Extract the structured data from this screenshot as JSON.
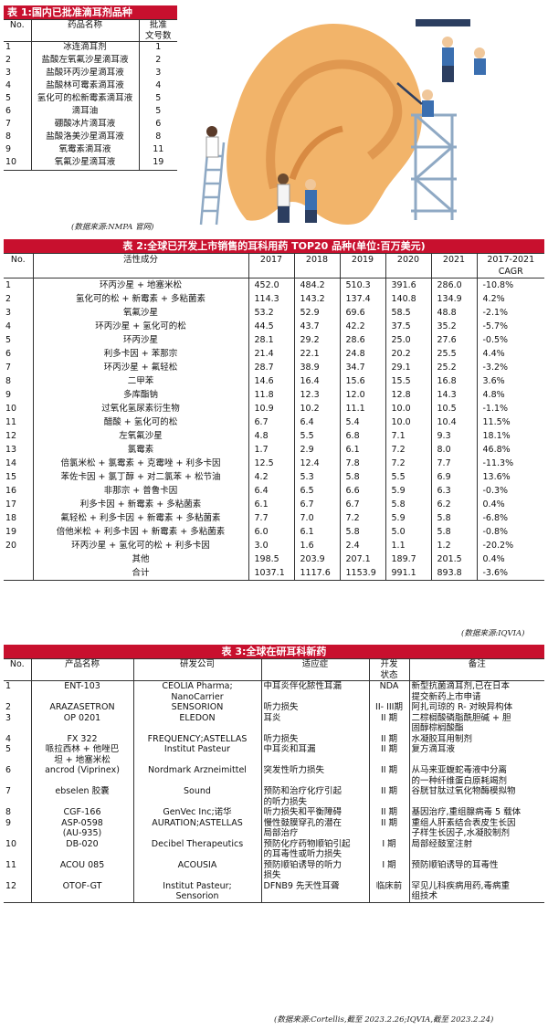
{
  "table1": {
    "title": "表 1:国内已批准滴耳剂品种",
    "headers": [
      "No.",
      "药品名称",
      "批准\n文号数"
    ],
    "rows": [
      [
        "1",
        "冰连滴耳剂",
        "1"
      ],
      [
        "2",
        "盐酸左氧氟沙星滴耳液",
        "2"
      ],
      [
        "3",
        "盐酸环丙沙星滴耳液",
        "3"
      ],
      [
        "4",
        "盐酸林可霉素滴耳液",
        "4"
      ],
      [
        "5",
        "氢化可的松新霉素滴耳液",
        "5"
      ],
      [
        "6",
        "滴耳油",
        "5"
      ],
      [
        "7",
        "硼酸冰片滴耳液",
        "6"
      ],
      [
        "8",
        "盐酸洛美沙星滴耳液",
        "8"
      ],
      [
        "9",
        "氧霉素滴耳液",
        "11"
      ],
      [
        "10",
        "氧氟沙星滴耳液",
        "19"
      ]
    ],
    "source": "(数据来源:NMPA 官网)"
  },
  "table2": {
    "title": "表 2:全球已开发上市销售的耳科用药 TOP20 品种(单位:百万美元)",
    "headers": [
      "No.",
      "活性成分",
      "2017",
      "2018",
      "2019",
      "2020",
      "2021",
      "2017-2021\nCAGR"
    ],
    "rows": [
      [
        "1",
        "环丙沙星 + 地塞米松",
        "452.0",
        "484.2",
        "510.3",
        "391.6",
        "286.0",
        "-10.8%"
      ],
      [
        "2",
        "氢化可的松 + 新霉素 + 多粘菌素",
        "114.3",
        "143.2",
        "137.4",
        "140.8",
        "134.9",
        "4.2%"
      ],
      [
        "3",
        "氧氟沙星",
        "53.2",
        "52.9",
        "69.6",
        "58.5",
        "48.8",
        "-2.1%"
      ],
      [
        "4",
        "环丙沙星 + 氢化可的松",
        "44.5",
        "43.7",
        "42.2",
        "37.5",
        "35.2",
        "-5.7%"
      ],
      [
        "5",
        "环丙沙星",
        "28.1",
        "29.2",
        "28.6",
        "25.0",
        "27.6",
        "-0.5%"
      ],
      [
        "6",
        "利多卡因 + 苯那宗",
        "21.4",
        "22.1",
        "24.8",
        "20.2",
        "25.5",
        "4.4%"
      ],
      [
        "7",
        "环丙沙星 + 氟轻松",
        "28.7",
        "38.9",
        "34.7",
        "29.1",
        "25.2",
        "-3.2%"
      ],
      [
        "8",
        "二甲苯",
        "14.6",
        "16.4",
        "15.6",
        "15.5",
        "16.8",
        "3.6%"
      ],
      [
        "9",
        "多库酯钠",
        "11.8",
        "12.3",
        "12.0",
        "12.8",
        "14.3",
        "4.8%"
      ],
      [
        "10",
        "过氧化氢尿素衍生物",
        "10.9",
        "10.2",
        "11.1",
        "10.0",
        "10.5",
        "-1.1%"
      ],
      [
        "11",
        "醋酸 + 氢化可的松",
        "6.7",
        "6.4",
        "5.4",
        "10.0",
        "10.4",
        "11.5%"
      ],
      [
        "12",
        "左氧氟沙星",
        "4.8",
        "5.5",
        "6.8",
        "7.1",
        "9.3",
        "18.1%"
      ],
      [
        "13",
        "氯霉素",
        "1.7",
        "2.9",
        "6.1",
        "7.2",
        "8.0",
        "46.8%"
      ],
      [
        "14",
        "倍氯米松 + 氯霉素 + 克霉唑 + 利多卡因",
        "12.5",
        "12.4",
        "7.8",
        "7.2",
        "7.7",
        "-11.3%"
      ],
      [
        "15",
        "苯佐卡因 + 氯丁醇 + 对二氯苯 + 松节油",
        "4.2",
        "5.3",
        "5.8",
        "5.5",
        "6.9",
        "13.6%"
      ],
      [
        "16",
        "非那宗 + 普鲁卡因",
        "6.4",
        "6.5",
        "6.6",
        "5.9",
        "6.3",
        "-0.3%"
      ],
      [
        "17",
        "利多卡因 + 新霉素 + 多粘菌素",
        "6.1",
        "6.7",
        "6.7",
        "5.8",
        "6.2",
        "0.4%"
      ],
      [
        "18",
        "氟轻松 + 利多卡因 + 新霉素 + 多粘菌素",
        "7.7",
        "7.0",
        "7.2",
        "5.9",
        "5.8",
        "-6.8%"
      ],
      [
        "19",
        "倍他米松 + 利多卡因 + 新霉素 + 多粘菌素",
        "6.0",
        "6.1",
        "5.8",
        "5.0",
        "5.8",
        "-0.8%"
      ],
      [
        "20",
        "环丙沙星 + 氢化可的松 + 利多卡因",
        "3.0",
        "1.6",
        "2.4",
        "1.1",
        "1.2",
        "-20.2%"
      ],
      [
        "",
        "其他",
        "198.5",
        "203.9",
        "207.1",
        "189.7",
        "201.5",
        "0.4%"
      ],
      [
        "",
        "合计",
        "1037.1",
        "1117.6",
        "1153.9",
        "991.1",
        "893.8",
        "-3.6%"
      ]
    ],
    "source": "(数据来源:IQVIA)"
  },
  "table3": {
    "title": "表 3:全球在研耳科新药",
    "headers": [
      "No.",
      "产品名称",
      "研发公司",
      "适应症",
      "开发\n状态",
      "备注"
    ],
    "rows": [
      [
        "1",
        "ENT-103",
        "CEOLIA Pharma;\nNanoCarrier",
        "中耳炎伴化脓性耳漏",
        "NDA",
        "新型抗菌滴耳剂,已在日本\n提交新药上市申请"
      ],
      [
        "2",
        "ARAZASETRON",
        "SENSORION",
        "听力损失",
        "II- III期",
        "阿扎司琼的 R- 对映异构体"
      ],
      [
        "3",
        "OP 0201",
        "ELEDON",
        "耳炎",
        "II 期",
        "二棕榈酸磷脂酰胆碱 + 胆\n固醇棕榈酸酯"
      ],
      [
        "4",
        "FX 322",
        "FREQUENCY;ASTELLAS",
        "听力损失",
        "II 期",
        "水凝胶耳用制剂"
      ],
      [
        "5",
        "哌拉西林 + 他唑巴\n坦 + 地塞米松",
        "Institut Pasteur",
        "中耳炎和耳漏",
        "II 期",
        "复方滴耳液"
      ],
      [
        "6",
        "ancrod (Viprinex)",
        "Nordmark Arzneimittel",
        "突发性听力损失",
        "II 期",
        "从马来亚蝮蛇毒液中分离\n的一种纤维蛋白原耗竭剂"
      ],
      [
        "7",
        "ebselen 胶囊",
        "Sound",
        "预防和治疗化疗引起\n的听力损失",
        "II 期",
        "谷胱甘肽过氧化物酶模拟物"
      ],
      [
        "8",
        "CGF-166",
        "GenVec Inc;诺华",
        "听力损失和平衡障碍",
        "II 期",
        "基因治疗,重组腺病毒 5 载体"
      ],
      [
        "9",
        "ASP-0598\n(AU-935)",
        "AURATION;ASTELLAS",
        "慢性鼓膜穿孔的潜在\n局部治疗",
        "II 期",
        "重组人肝素结合表皮生长因\n子样生长因子,水凝胶制剂"
      ],
      [
        "10",
        "DB-020",
        "Decibel Therapeutics",
        "预防化疗药物顺铂引起\n的耳毒性或听力损失",
        "I 期",
        "局部经鼓室注射"
      ],
      [
        "11",
        "ACOU 085",
        "ACOUSIA",
        "预防顺铂诱导的听力\n损失",
        "I 期",
        "预防顺铂诱导的耳毒性"
      ],
      [
        "12",
        "OTOF-GT",
        "Institut Pasteur;\nSensorion",
        "DFNB9 先天性耳聋",
        "临床前",
        "罕见儿科疾病用药,毒病重\n组技术"
      ]
    ],
    "source": "(数据来源:Cortellis,截至 2023.2.26;IQVIA,截至 2023.2.24)"
  },
  "colors": {
    "header_red": "#c8102e",
    "ear_skin": "#f2b46a",
    "scaffold": "#8fa9c4"
  }
}
